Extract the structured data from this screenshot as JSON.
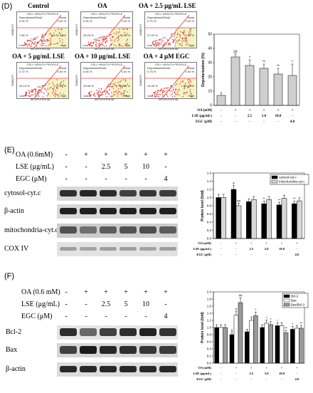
{
  "panel_d": {
    "letter": "(D)",
    "flow_panels": [
      {
        "title": "Control",
        "head": "CELL HEALTH PROFILE",
        "ul_pct": "0.02 %",
        "ur_pct": "0.04 %",
        "ll_pct": "7.86 %",
        "lr_pct": "91.04 %"
      },
      {
        "title": "OA",
        "head": "CELL HEALTH PROFILE",
        "ul_pct": "0.90 %",
        "ur_pct": "0.04 %",
        "ll_pct": "34.09 %",
        "lr_pct": "65.92 %"
      },
      {
        "title": "OA + 2.5 μg/mL LSE",
        "head": "CELL HEALTH PROFILE",
        "ul_pct": "0.70 %",
        "ur_pct": "0.04 %",
        "ll_pct": "27.20 %",
        "lr_pct": "72.58 %"
      },
      {
        "title": "OA + 5 μg/mL LSE",
        "head": "CELL HEALTH PROFILE",
        "ul_pct": "0.72 %",
        "ur_pct": "0.04 %",
        "ll_pct": "26.14 %",
        "lr_pct": "73.82 %"
      },
      {
        "title": "OA + 10 μg/mL LSE",
        "head": "CELL HEALTH PROFILE",
        "ul_pct": "0.90 %",
        "ur_pct": "0.04 %",
        "ll_pct": "19.58 %",
        "lr_pct": "80.50 %"
      },
      {
        "title": "OA + 4 μM EGC",
        "head": "CELL HEALTH PROFILE",
        "ul_pct": "0.75 %",
        "ur_pct": "0.04 %",
        "ll_pct": "14.95 %",
        "lr_pct": "85.04 %"
      }
    ],
    "quadrant_labels": {
      "ul": "Depolarized/Dead",
      "ur": "Dead",
      "ll": "Live",
      "lr": "High"
    },
    "axis_labels": {
      "x": "MITOPOTENTIAL",
      "y": "VIABILITY"
    }
  },
  "chart_d": {
    "type": "bar",
    "ylabel": "Depolarization (%)",
    "ylim": [
      0,
      50
    ],
    "yticks": [
      "0",
      "10",
      "20",
      "30",
      "40",
      "50"
    ],
    "values": [
      7,
      34,
      28,
      26,
      22,
      21
    ],
    "errors": [
      2,
      2,
      4,
      3,
      4,
      8
    ],
    "sig": [
      "",
      "##",
      "*",
      "**",
      "**",
      "*"
    ],
    "rows": [
      {
        "label": "OA (mM)",
        "cells": [
          "-",
          "+",
          "+",
          "+",
          "+",
          "+"
        ]
      },
      {
        "label": "LSE (μg/mL)",
        "cells": [
          "-",
          "-",
          "2.5",
          "5.0",
          "10.0",
          "-"
        ]
      },
      {
        "label": "EGC (μM)",
        "cells": [
          "-",
          "-",
          "-",
          "-",
          "-",
          "4.0"
        ]
      }
    ]
  },
  "panel_e": {
    "letter": "(E)",
    "rows": [
      {
        "label": "OA (0.6mM)",
        "cells": [
          "-",
          "+",
          "+",
          "+",
          "+",
          "+"
        ]
      },
      {
        "label": "LSE (μg/mL)",
        "cells": [
          "-",
          "-",
          "2.5",
          "5",
          "10",
          "-"
        ]
      },
      {
        "label": "EGC (μM)",
        "cells": [
          "-",
          "-",
          "-",
          "-",
          "-",
          "4"
        ]
      }
    ],
    "blots": [
      "cytosol-cyt.c",
      "β-actin",
      "mitochondria-cyt.c",
      "COX IV"
    ]
  },
  "chart_e": {
    "type": "bar",
    "ylabel": "Protein level (fold)",
    "ylim": [
      0,
      1.6
    ],
    "yticks": [
      "0.0",
      "0.2",
      "0.4",
      "0.6",
      "0.8",
      "1.0",
      "1.2",
      "1.4",
      "1.6"
    ],
    "series": [
      {
        "name": "cytosol-cyt.c",
        "color": "#000000",
        "values": [
          1.0,
          1.2,
          0.9,
          0.85,
          0.82,
          0.85
        ],
        "sig": [
          "",
          "#",
          "",
          "**",
          "**",
          "**"
        ]
      },
      {
        "name": "mitochondria-cyt.c",
        "color": "#d8d8d8",
        "values": [
          1.0,
          0.8,
          0.95,
          0.95,
          0.98,
          0.92
        ],
        "sig": [
          "",
          "##",
          "",
          "",
          "",
          ""
        ]
      }
    ],
    "rows": [
      {
        "label": "OA (mM)",
        "cells": [
          "-",
          "+",
          "+",
          "+",
          "+",
          "+"
        ]
      },
      {
        "label": "LSE (μg/mL)",
        "cells": [
          "-",
          "-",
          "2.5",
          "5.0",
          "10.0",
          "-"
        ]
      },
      {
        "label": "EGC (μM)",
        "cells": [
          "-",
          "-",
          "-",
          "-",
          "-",
          "4.0"
        ]
      }
    ]
  },
  "panel_f": {
    "letter": "(F)",
    "rows": [
      {
        "label": "OA (0.6 mM)",
        "cells": [
          "-",
          "+",
          "+",
          "+",
          "+",
          "+"
        ]
      },
      {
        "label": "LSE (μg/mL)",
        "cells": [
          "-",
          "-",
          "2.5",
          "5",
          "10",
          "-"
        ]
      },
      {
        "label": "EGC (μM)",
        "cells": [
          "-",
          "-",
          "-",
          "-",
          "-",
          "4"
        ]
      }
    ],
    "blots": [
      "Bcl-2",
      "Bax",
      "β-actin"
    ]
  },
  "chart_f": {
    "type": "bar",
    "ylabel": "Protein level (fold)",
    "ylim": [
      0,
      2.0
    ],
    "yticks": [
      "0.0",
      "0.2",
      "0.4",
      "0.6",
      "0.8",
      "1.0",
      "1.2",
      "1.4",
      "1.6",
      "1.8",
      "2.0"
    ],
    "series": [
      {
        "name": "Bcl-2",
        "color": "#000000",
        "values": [
          1.0,
          0.8,
          0.88,
          1.0,
          1.05,
          0.95
        ],
        "sig": [
          "",
          "#",
          "",
          "",
          "*",
          "*"
        ]
      },
      {
        "name": "Bax",
        "color": "#ffffff",
        "values": [
          1.0,
          1.35,
          1.2,
          1.12,
          1.05,
          0.98
        ],
        "sig": [
          "",
          "#",
          "",
          "*",
          "",
          ""
        ]
      },
      {
        "name": "Bax/Bcl-2",
        "color": "#9a9a9a",
        "values": [
          1.0,
          1.7,
          1.33,
          1.08,
          0.85,
          0.98
        ],
        "sig": [
          "",
          "##",
          "*",
          "*",
          "**",
          "**"
        ]
      }
    ],
    "rows": [
      {
        "label": "OA (mM)",
        "cells": [
          "-",
          "+",
          "+",
          "+",
          "+",
          "+"
        ]
      },
      {
        "label": "LSE (μg/mL)",
        "cells": [
          "-",
          "-",
          "2.5",
          "5.0",
          "10.0",
          "-"
        ]
      },
      {
        "label": "EGC (μM)",
        "cells": [
          "-",
          "-",
          "-",
          "-",
          "-",
          "4.0"
        ]
      }
    ]
  }
}
